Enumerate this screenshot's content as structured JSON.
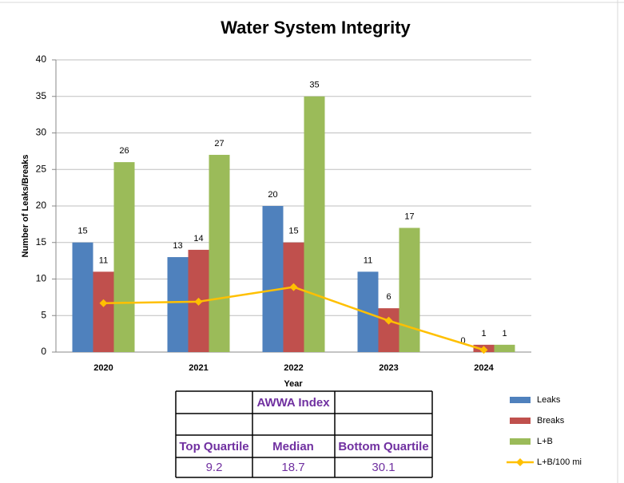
{
  "chart_data": {
    "type": "bar",
    "title": "Water System Integrity",
    "y_label": "Number of Leaks/Breaks",
    "x_label": "Year",
    "categories": [
      "2020",
      "2021",
      "2022",
      "2023",
      "2024"
    ],
    "series": [
      {
        "name": "Leaks",
        "color": "#4f81bd",
        "values": [
          15,
          13,
          20,
          11,
          0
        ]
      },
      {
        "name": "Breaks",
        "color": "#c0504d",
        "values": [
          11,
          14,
          15,
          6,
          1
        ]
      },
      {
        "name": "L+B",
        "color": "#9bbb59",
        "values": [
          26,
          27,
          35,
          17,
          1
        ]
      },
      {
        "name": "L+B/100 mi",
        "color": "#ffc000",
        "type": "line",
        "values": [
          6.7,
          6.9,
          8.9,
          4.3,
          0.3
        ]
      }
    ],
    "ylim": [
      0,
      40
    ],
    "yticks": [
      0,
      5,
      10,
      15,
      20,
      25,
      30,
      35,
      40
    ],
    "grid": true,
    "legend": "right",
    "table": {
      "title": "AWWA Index",
      "columns": [
        "Top Quartile",
        "Median",
        "Bottom Quartile"
      ],
      "values": [
        9.2,
        18.7,
        30.1
      ]
    }
  }
}
